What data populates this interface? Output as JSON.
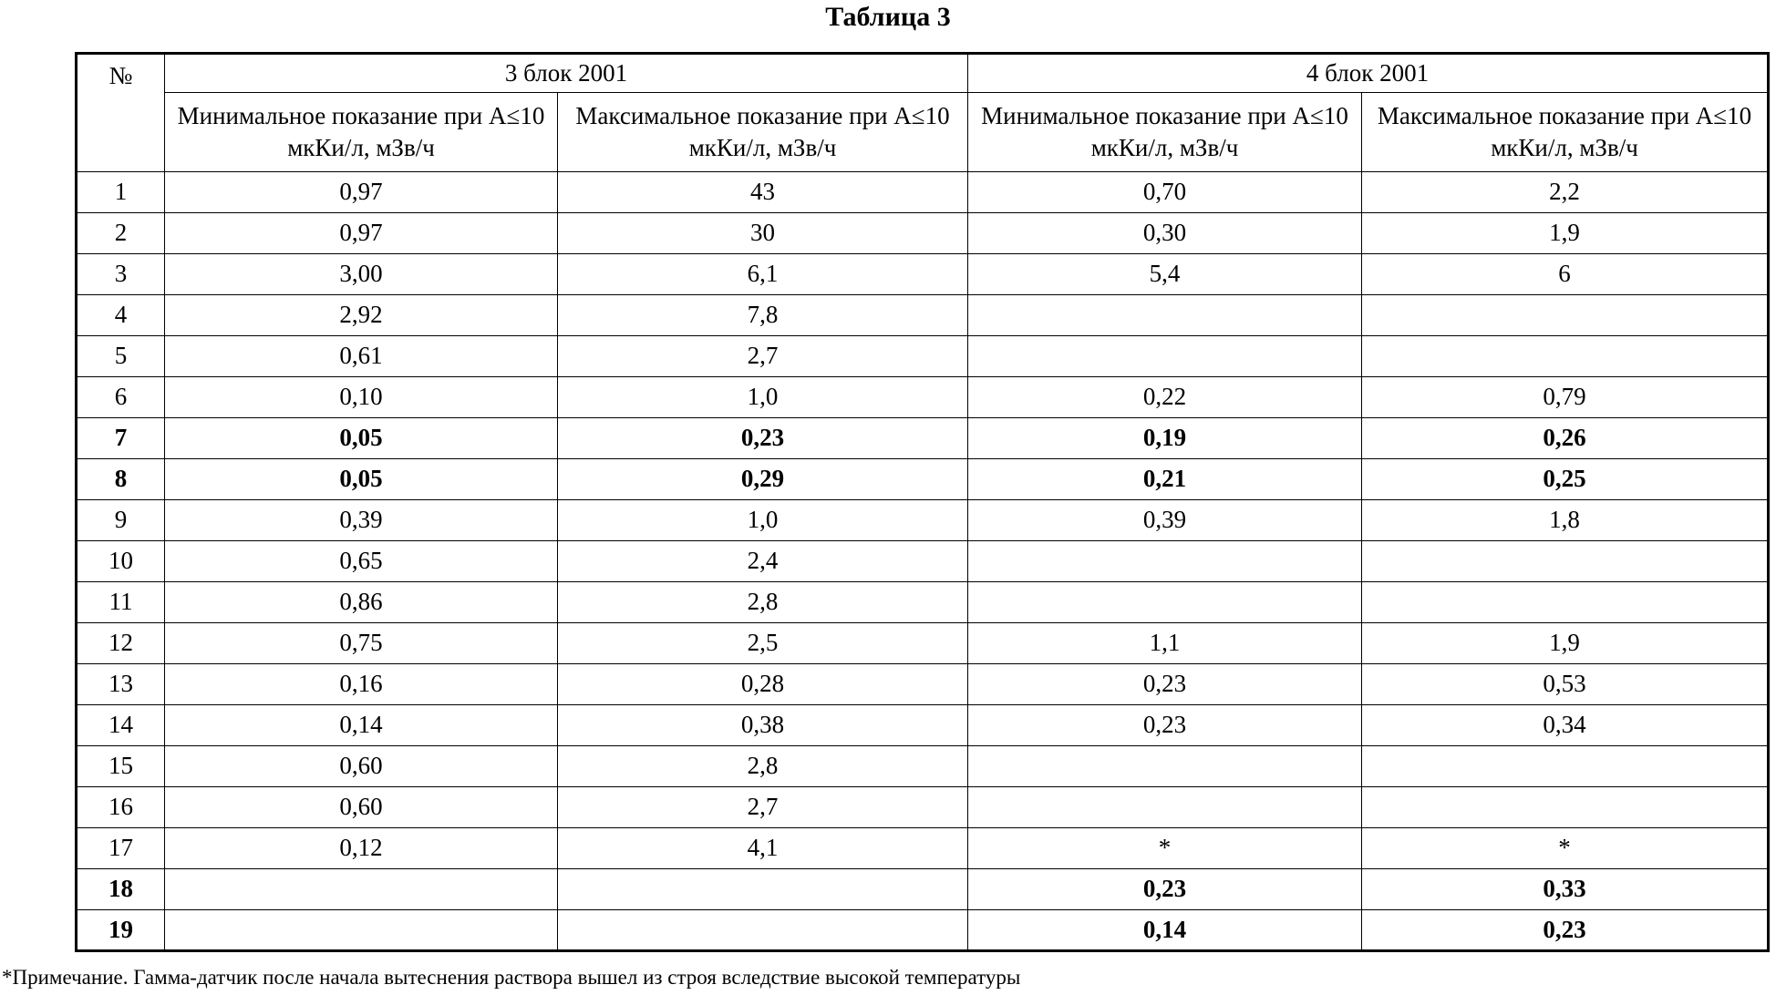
{
  "title": "Таблица 3",
  "table": {
    "header": {
      "number": "№",
      "groups": [
        "3 блок 2001",
        "4 блок 2001"
      ],
      "subheaders": [
        "Минимальное показание при А≤10 мкКи/л, мЗв/ч",
        "Максимальное показание при А≤10 мкКи/л, мЗв/ч",
        "Минимальное показание при А≤10 мкКи/л, мЗв/ч",
        "Максимальное показание при А≤10 мкКи/л, мЗв/ч"
      ]
    },
    "rows": [
      {
        "cells": [
          "1",
          "0,97",
          "43",
          "0,70",
          "2,2"
        ]
      },
      {
        "cells": [
          "2",
          "0,97",
          "30",
          "0,30",
          "1,9"
        ]
      },
      {
        "cells": [
          "3",
          "3,00",
          "6,1",
          "5,4",
          "6"
        ]
      },
      {
        "cells": [
          "4",
          "2,92",
          "7,8",
          null,
          null
        ]
      },
      {
        "cells": [
          "5",
          "0,61",
          "2,7",
          null,
          null
        ]
      },
      {
        "cells": [
          "6",
          "0,10",
          "1,0",
          "0,22",
          "0,79"
        ]
      },
      {
        "cells": [
          "7",
          "0,05",
          "0,23",
          "0,19",
          "0,26"
        ],
        "bold": true
      },
      {
        "cells": [
          "8",
          "0,05",
          "0,29",
          "0,21",
          "0,25"
        ],
        "bold": true
      },
      {
        "cells": [
          "9",
          "0,39",
          "1,0",
          "0,39",
          "1,8"
        ]
      },
      {
        "cells": [
          "10",
          "0,65",
          "2,4",
          null,
          null
        ]
      },
      {
        "cells": [
          "11",
          "0,86",
          "2,8",
          null,
          null
        ]
      },
      {
        "cells": [
          "12",
          "0,75",
          "2,5",
          "1,1",
          "1,9"
        ]
      },
      {
        "cells": [
          "13",
          "0,16",
          "0,28",
          "0,23",
          "0,53"
        ]
      },
      {
        "cells": [
          "14",
          "0,14",
          "0,38",
          "0,23",
          "0,34"
        ]
      },
      {
        "cells": [
          "15",
          "0,60",
          "2,8",
          null,
          null
        ]
      },
      {
        "cells": [
          "16",
          "0,60",
          "2,7",
          null,
          null
        ]
      },
      {
        "cells": [
          "17",
          "0,12",
          "4,1",
          "*",
          "*"
        ]
      },
      {
        "cells": [
          "18",
          null,
          null,
          "0,23",
          "0,33"
        ],
        "bold": true
      },
      {
        "cells": [
          "19",
          null,
          null,
          "0,14",
          "0,23"
        ],
        "bold": true
      }
    ]
  },
  "note": "*Примечание. Гамма-датчик после начала вытеснения раствора вышел из строя вследствие высокой температуры"
}
